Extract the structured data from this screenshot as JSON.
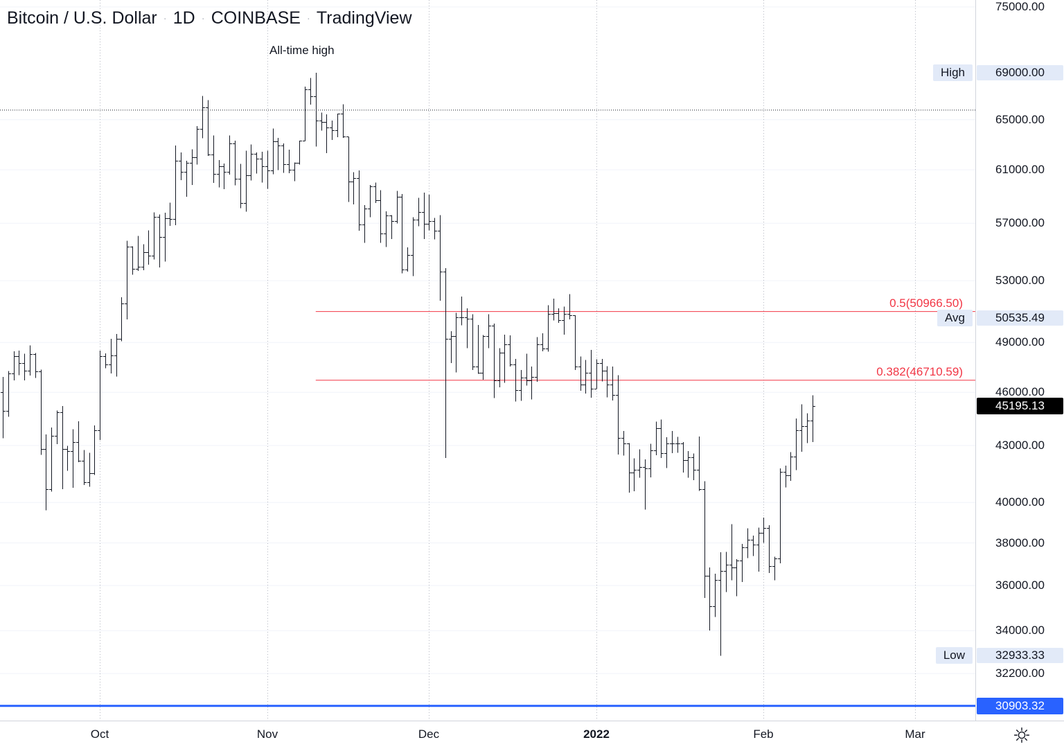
{
  "legend": {
    "symbol": "Bitcoin / U.S. Dollar",
    "separator": "·",
    "interval": "1D",
    "exchange": "COINBASE",
    "brand": "TradingView"
  },
  "annotations": {
    "all_time_high_text": "All-time high",
    "ath_line_price": 65800,
    "fib_start_index": 58,
    "fib_levels": [
      {
        "label": "0.5(50966.50)",
        "price": 50966.5
      },
      {
        "label": "0.382(46710.59)",
        "price": 46710.59
      }
    ],
    "blue_line_price": 30903.32
  },
  "price_axis": {
    "ticks": [
      {
        "label": "75000.00",
        "price": 75000
      },
      {
        "label": "65000.00",
        "price": 65000
      },
      {
        "label": "61000.00",
        "price": 61000
      },
      {
        "label": "57000.00",
        "price": 57000
      },
      {
        "label": "53000.00",
        "price": 53000
      },
      {
        "label": "49000.00",
        "price": 49000
      },
      {
        "label": "46000.00",
        "price": 46000
      },
      {
        "label": "43000.00",
        "price": 43000
      },
      {
        "label": "40000.00",
        "price": 40000
      },
      {
        "label": "38000.00",
        "price": 38000
      },
      {
        "label": "36000.00",
        "price": 36000
      },
      {
        "label": "34000.00",
        "price": 34000
      },
      {
        "label": "32200.00",
        "price": 32200
      }
    ],
    "badges": [
      {
        "name": "high",
        "word": "High",
        "value": "69000.00",
        "price": 69000,
        "style": "pale"
      },
      {
        "name": "avg",
        "word": "Avg",
        "value": "50535.49",
        "price": 50535.49,
        "style": "pale"
      },
      {
        "name": "low",
        "word": "Low",
        "value": "32933.33",
        "price": 32933.33,
        "style": "pale"
      },
      {
        "name": "last-price",
        "word": "",
        "value": "45195.13",
        "price": 45195.13,
        "style": "last"
      },
      {
        "name": "blue-line",
        "word": "",
        "value": "30903.32",
        "price": 30903.32,
        "style": "blue"
      }
    ]
  },
  "time_axis": {
    "labels": [
      {
        "text": "Oct",
        "index": 18
      },
      {
        "text": "Nov",
        "index": 49
      },
      {
        "text": "Dec",
        "index": 79
      },
      {
        "text": "2022",
        "index": 110,
        "bold": true
      },
      {
        "text": "Feb",
        "index": 141
      },
      {
        "text": "Mar",
        "index": 169
      }
    ]
  },
  "colors": {
    "bar": "#131722",
    "grid": "#f0f3fa",
    "vgrid": "#b4b7c1",
    "fib": "#f23645",
    "blue_line": "#2962ff",
    "badge_pale": "#e2eaf8",
    "badge_last_bg": "#000000",
    "badge_blue_bg": "#2962ff",
    "text": "#131722"
  },
  "chart_data": {
    "type": "ohlc-bar",
    "title": "Bitcoin / U.S. Dollar, 1D, COINBASE",
    "scale": "logarithmic",
    "interval": "1 day",
    "start_date": "2021-09-13",
    "end_date": "2022-02-10",
    "visible_price_range": [
      30500,
      75500
    ],
    "high": 69000.0,
    "low": 32933.33,
    "avg": 50535.49,
    "last_price": 45195.13,
    "bars_ohlc": [
      [
        46000,
        46900,
        43400,
        44950
      ],
      [
        44950,
        47250,
        44600,
        47100
      ],
      [
        47100,
        48450,
        46700,
        48140
      ],
      [
        48140,
        48500,
        47020,
        47750
      ],
      [
        47750,
        48300,
        46700,
        47300
      ],
      [
        47300,
        48820,
        47000,
        48300
      ],
      [
        48300,
        48350,
        46850,
        47250
      ],
      [
        47250,
        47350,
        42500,
        42820
      ],
      [
        42820,
        43600,
        39600,
        40700
      ],
      [
        40700,
        44000,
        40550,
        43550
      ],
      [
        43550,
        44950,
        43080,
        44870
      ],
      [
        44870,
        45200,
        40680,
        42820
      ],
      [
        42820,
        42980,
        41650,
        42680
      ],
      [
        42680,
        43900,
        40750,
        43200
      ],
      [
        43200,
        44350,
        42100,
        42160
      ],
      [
        42160,
        42760,
        40900,
        41030
      ],
      [
        41030,
        42600,
        40800,
        41520
      ],
      [
        41520,
        44100,
        41420,
        43820
      ],
      [
        43820,
        48500,
        43300,
        48170
      ],
      [
        48170,
        48340,
        47430,
        47660
      ],
      [
        47660,
        49230,
        47110,
        48220
      ],
      [
        48220,
        49530,
        46920,
        49240
      ],
      [
        49240,
        51900,
        49070,
        51490
      ],
      [
        51490,
        55750,
        50450,
        55340
      ],
      [
        55340,
        55350,
        53400,
        53800
      ],
      [
        53800,
        56100,
        53670,
        53960
      ],
      [
        53960,
        55500,
        53700,
        54950
      ],
      [
        54950,
        56500,
        54080,
        54690
      ],
      [
        54690,
        57800,
        54450,
        57480
      ],
      [
        57480,
        57650,
        53900,
        56000
      ],
      [
        56000,
        57770,
        54300,
        57370
      ],
      [
        57370,
        58500,
        56820,
        57340
      ],
      [
        57340,
        62900,
        56870,
        61680
      ],
      [
        61680,
        62350,
        60200,
        60870
      ],
      [
        60870,
        61700,
        58960,
        61530
      ],
      [
        61530,
        62600,
        59850,
        62000
      ],
      [
        62000,
        64480,
        61420,
        64280
      ],
      [
        64280,
        67000,
        63500,
        66000
      ],
      [
        66000,
        66650,
        62100,
        62200
      ],
      [
        62200,
        63720,
        60000,
        60690
      ],
      [
        60690,
        61750,
        59650,
        61300
      ],
      [
        61300,
        61500,
        59510,
        60850
      ],
      [
        60850,
        63720,
        60640,
        63080
      ],
      [
        63080,
        63290,
        59800,
        60330
      ],
      [
        60330,
        61450,
        58100,
        58460
      ],
      [
        58460,
        62500,
        57850,
        60580
      ],
      [
        60580,
        62980,
        60170,
        62250
      ],
      [
        62250,
        62360,
        60700,
        61850
      ],
      [
        61850,
        62420,
        60020,
        61300
      ],
      [
        61300,
        62500,
        59540,
        60940
      ],
      [
        60940,
        64280,
        60670,
        63220
      ],
      [
        63220,
        63520,
        60980,
        62900
      ],
      [
        62900,
        63080,
        60770,
        61430
      ],
      [
        61430,
        62590,
        60750,
        61000
      ],
      [
        61000,
        61580,
        60130,
        61520
      ],
      [
        61520,
        63290,
        61400,
        63280
      ],
      [
        63280,
        67800,
        63280,
        67550
      ],
      [
        67550,
        68530,
        66250,
        66950
      ],
      [
        66950,
        69000,
        62830,
        64940
      ],
      [
        64940,
        65600,
        64110,
        64800
      ],
      [
        64800,
        65460,
        62300,
        64380
      ],
      [
        64380,
        64920,
        63360,
        64160
      ],
      [
        64160,
        65500,
        63580,
        65500
      ],
      [
        65500,
        66280,
        63530,
        63610
      ],
      [
        63610,
        63610,
        58570,
        60100
      ],
      [
        60100,
        60830,
        58370,
        60360
      ],
      [
        60360,
        60950,
        56460,
        56900
      ],
      [
        56900,
        58320,
        55600,
        58100
      ],
      [
        58100,
        59850,
        57450,
        59730
      ],
      [
        59730,
        60020,
        58480,
        58700
      ],
      [
        58700,
        59450,
        55600,
        56250
      ],
      [
        56250,
        57875,
        55320,
        57560
      ],
      [
        57560,
        57600,
        55870,
        57160
      ],
      [
        57160,
        59400,
        57000,
        58960
      ],
      [
        58960,
        59150,
        53500,
        53730
      ],
      [
        53730,
        55280,
        53610,
        54770
      ],
      [
        54770,
        57450,
        53300,
        57270
      ],
      [
        57270,
        58870,
        56780,
        57800
      ],
      [
        57800,
        59250,
        55880,
        56950
      ],
      [
        56950,
        59100,
        56500,
        57180
      ],
      [
        57180,
        57380,
        55840,
        56480
      ],
      [
        56480,
        57600,
        51680,
        53600
      ],
      [
        53600,
        53850,
        42330,
        49250
      ],
      [
        49250,
        49700,
        47730,
        49400
      ],
      [
        49400,
        50890,
        47170,
        50580
      ],
      [
        50580,
        51950,
        50080,
        50590
      ],
      [
        50590,
        51180,
        48640,
        50500
      ],
      [
        50500,
        50790,
        47320,
        47550
      ],
      [
        47550,
        50100,
        47100,
        47150
      ],
      [
        47150,
        49480,
        46750,
        49400
      ],
      [
        49400,
        50800,
        48660,
        50050
      ],
      [
        50050,
        50200,
        45670,
        46700
      ],
      [
        46700,
        48650,
        46290,
        48370
      ],
      [
        48370,
        49500,
        46550,
        48870
      ],
      [
        48870,
        49440,
        47520,
        47650
      ],
      [
        47650,
        47995,
        45460,
        46150
      ],
      [
        46150,
        47330,
        45500,
        46880
      ],
      [
        46880,
        48300,
        46400,
        46700
      ],
      [
        46700,
        47530,
        45580,
        46900
      ],
      [
        46900,
        49330,
        46630,
        48890
      ],
      [
        48890,
        49570,
        48450,
        48610
      ],
      [
        48610,
        51380,
        48430,
        50830
      ],
      [
        50830,
        51810,
        50380,
        50850
      ],
      [
        50850,
        51170,
        50230,
        50430
      ],
      [
        50430,
        51280,
        49500,
        50800
      ],
      [
        50800,
        52100,
        50450,
        50720
      ],
      [
        50720,
        50720,
        47330,
        47550
      ],
      [
        47550,
        48150,
        46100,
        46470
      ],
      [
        46470,
        47920,
        45920,
        47150
      ],
      [
        47150,
        48550,
        45680,
        46210
      ],
      [
        46210,
        47970,
        46210,
        47740
      ],
      [
        47740,
        47990,
        46650,
        47300
      ],
      [
        47300,
        47560,
        45700,
        46440
      ],
      [
        46440,
        47520,
        45530,
        45830
      ],
      [
        45830,
        47020,
        42510,
        43430
      ],
      [
        43430,
        43800,
        42450,
        43100
      ],
      [
        43100,
        43130,
        40510,
        41560
      ],
      [
        41560,
        42310,
        40570,
        41700
      ],
      [
        41700,
        42790,
        41270,
        41860
      ],
      [
        41860,
        42250,
        39650,
        41780
      ],
      [
        41780,
        43100,
        41290,
        42740
      ],
      [
        42740,
        44320,
        42470,
        43950
      ],
      [
        43950,
        44430,
        42330,
        42580
      ],
      [
        42580,
        43450,
        41790,
        43100
      ],
      [
        43100,
        43800,
        42590,
        43100
      ],
      [
        43100,
        43480,
        42600,
        43110
      ],
      [
        43110,
        43180,
        41550,
        42210
      ],
      [
        42210,
        42690,
        41270,
        42370
      ],
      [
        42370,
        42560,
        41150,
        41680
      ],
      [
        41680,
        43500,
        40600,
        40690
      ],
      [
        40690,
        41100,
        35440,
        36450
      ],
      [
        36450,
        36830,
        34000,
        35080
      ],
      [
        35080,
        36550,
        34600,
        36270
      ],
      [
        36270,
        37550,
        32933.33,
        36690
      ],
      [
        36690,
        37580,
        35700,
        36960
      ],
      [
        36960,
        38920,
        36250,
        36830
      ],
      [
        36830,
        37230,
        35510,
        37160
      ],
      [
        37160,
        37950,
        36170,
        37780
      ],
      [
        37780,
        38720,
        37270,
        38170
      ],
      [
        38170,
        38360,
        37370,
        37920
      ],
      [
        37920,
        38740,
        36640,
        38480
      ],
      [
        38480,
        39250,
        38010,
        38720
      ],
      [
        38720,
        38860,
        36580,
        36900
      ],
      [
        36900,
        37350,
        36250,
        37270
      ],
      [
        37270,
        41770,
        37030,
        41570
      ],
      [
        41570,
        41920,
        40780,
        41390
      ],
      [
        41390,
        42650,
        41120,
        42400
      ],
      [
        42400,
        44500,
        41680,
        43850
      ],
      [
        43850,
        45310,
        42660,
        44070
      ],
      [
        44070,
        44800,
        43130,
        44400
      ],
      [
        44400,
        45820,
        43180,
        45195.13
      ]
    ]
  }
}
